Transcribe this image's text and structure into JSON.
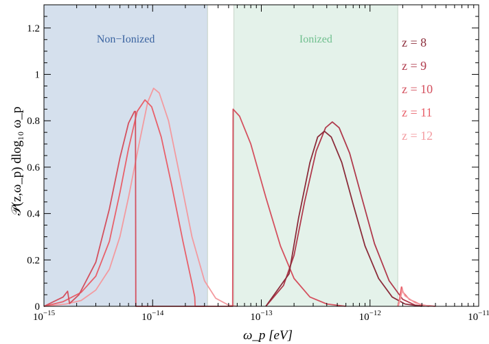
{
  "chart_data": {
    "type": "line",
    "xlabel": "ω_p   [eV]",
    "ylabel": "𝒫(z,ω_p) dlog₁₀ ω_p",
    "x_scale": "log",
    "xlim": [
      1e-15,
      1e-11
    ],
    "ylim": [
      0,
      1.3
    ],
    "x_ticks": [
      {
        "value": 1e-15,
        "base": "10",
        "exp": "−15"
      },
      {
        "value": 1e-14,
        "base": "10",
        "exp": "−14"
      },
      {
        "value": 1e-13,
        "base": "10",
        "exp": "−13"
      },
      {
        "value": 1e-12,
        "base": "10",
        "exp": "−12"
      },
      {
        "value": 1e-11,
        "base": "10",
        "exp": "−11"
      }
    ],
    "y_ticks": [
      {
        "value": 0,
        "label": "0"
      },
      {
        "value": 0.2,
        "label": "0.2"
      },
      {
        "value": 0.4,
        "label": "0.4"
      },
      {
        "value": 0.6,
        "label": "0.6"
      },
      {
        "value": 0.8,
        "label": "0.8"
      },
      {
        "value": 1.0,
        "label": "1"
      },
      {
        "value": 1.2,
        "label": "1.2"
      }
    ],
    "regions": [
      {
        "label": "Non−Ionized",
        "x_from": 1e-15,
        "x_to": 3.2e-14,
        "fill": "#d5e0ed",
        "text_color": "#3a63a0"
      },
      {
        "label": "Ionized",
        "x_from": 5.6e-14,
        "x_to": 1.8e-12,
        "fill": "#e4f2ea",
        "text_color": "#6fbf8e"
      }
    ],
    "series": [
      {
        "name": "z = 8",
        "color": "#8b2c3a",
        "points": [
          [
            1.1e-13,
            0
          ],
          [
            1.8e-13,
            0.14
          ],
          [
            2.2e-13,
            0.38
          ],
          [
            2.8e-13,
            0.62
          ],
          [
            3.3e-13,
            0.73
          ],
          [
            3.8e-13,
            0.755
          ],
          [
            4.4e-13,
            0.73
          ],
          [
            5.5e-13,
            0.62
          ],
          [
            7e-13,
            0.44
          ],
          [
            9e-13,
            0.26
          ],
          [
            1.2e-12,
            0.12
          ],
          [
            1.6e-12,
            0.04
          ],
          [
            2.1e-12,
            0.01
          ],
          [
            3e-12,
            0
          ]
        ]
      },
      {
        "name": "z = 9",
        "color": "#b03a4c",
        "points": [
          [
            1.1e-13,
            0
          ],
          [
            1.6e-13,
            0.09
          ],
          [
            2e-13,
            0.22
          ],
          [
            2.5e-13,
            0.45
          ],
          [
            3.2e-13,
            0.67
          ],
          [
            3.9e-13,
            0.77
          ],
          [
            4.5e-13,
            0.795
          ],
          [
            5.2e-13,
            0.77
          ],
          [
            6.5e-13,
            0.66
          ],
          [
            8.5e-13,
            0.46
          ],
          [
            1.1e-12,
            0.27
          ],
          [
            1.5e-12,
            0.11
          ],
          [
            2e-12,
            0.03
          ],
          [
            2.6e-12,
            0.005
          ],
          [
            3.5e-12,
            0
          ]
        ]
      },
      {
        "name": "z = 10",
        "color": "#d4505e",
        "points": [
          [
            1e-15,
            0
          ],
          [
            1.5e-15,
            0.04
          ],
          [
            1.65e-15,
            0.065
          ],
          [
            1.72e-15,
            0.012
          ],
          [
            2.1e-15,
            0.05
          ],
          [
            3e-15,
            0.19
          ],
          [
            4e-15,
            0.42
          ],
          [
            5e-15,
            0.64
          ],
          [
            6e-15,
            0.79
          ],
          [
            6.8e-15,
            0.84
          ],
          [
            6.95e-15,
            0.84
          ],
          [
            7e-15,
            0.0
          ],
          [
            7.8e-15,
            0
          ],
          [
            5.4e-14,
            0
          ],
          [
            5.45e-14,
            0.0
          ],
          [
            5.5e-14,
            0.85
          ],
          [
            6.3e-14,
            0.82
          ],
          [
            8e-14,
            0.7
          ],
          [
            1.1e-13,
            0.47
          ],
          [
            1.5e-13,
            0.26
          ],
          [
            2e-13,
            0.12
          ],
          [
            2.8e-13,
            0.04
          ],
          [
            4e-13,
            0.01
          ],
          [
            6e-13,
            0
          ]
        ]
      },
      {
        "name": "z = 11",
        "color": "#e8606a",
        "points": [
          [
            1e-15,
            0
          ],
          [
            1.5e-15,
            0.02
          ],
          [
            2.2e-15,
            0.06
          ],
          [
            3e-15,
            0.13
          ],
          [
            4e-15,
            0.28
          ],
          [
            5e-15,
            0.49
          ],
          [
            6e-15,
            0.68
          ],
          [
            7.2e-15,
            0.84
          ],
          [
            8.5e-15,
            0.89
          ],
          [
            9.8e-15,
            0.86
          ],
          [
            1.2e-14,
            0.73
          ],
          [
            1.5e-14,
            0.52
          ],
          [
            1.9e-14,
            0.28
          ],
          [
            2.3e-14,
            0.1
          ],
          [
            2.44e-14,
            0.04
          ],
          [
            2.46e-14,
            0.0
          ],
          [
            3e-14,
            0
          ]
        ]
      },
      {
        "name": "z = 12",
        "color": "#f39a9f",
        "points": [
          [
            1e-15,
            0
          ],
          [
            1.6e-15,
            0.01
          ],
          [
            2.2e-15,
            0.025
          ],
          [
            3e-15,
            0.07
          ],
          [
            4e-15,
            0.16
          ],
          [
            5e-15,
            0.3
          ],
          [
            6e-15,
            0.47
          ],
          [
            7.5e-15,
            0.7
          ],
          [
            9e-15,
            0.88
          ],
          [
            1.02e-14,
            0.94
          ],
          [
            1.15e-14,
            0.92
          ],
          [
            1.4e-14,
            0.8
          ],
          [
            1.8e-14,
            0.55
          ],
          [
            2.3e-14,
            0.3
          ],
          [
            3e-14,
            0.11
          ],
          [
            3.8e-14,
            0.035
          ],
          [
            5e-14,
            0.005
          ],
          [
            6e-14,
            0
          ]
        ]
      }
    ],
    "extra_series_segments": [
      {
        "color": "#e8606a",
        "points": [
          [
            1e-15,
            0
          ],
          [
            1e-15,
            0
          ]
        ]
      },
      {
        "color": "#e8606a",
        "points": [
          [
            1.8e-12,
            0
          ],
          [
            1.85e-12,
            0.02
          ],
          [
            1.95e-12,
            0.085
          ],
          [
            2.02e-12,
            0.06
          ],
          [
            2.3e-12,
            0.03
          ],
          [
            3e-12,
            0.005
          ],
          [
            4e-12,
            0
          ]
        ]
      },
      {
        "color": "#f39a9f",
        "points": [
          [
            1.82e-12,
            0
          ],
          [
            1.9e-12,
            0.03
          ],
          [
            1.98e-12,
            0.07
          ],
          [
            2.1e-12,
            0.045
          ],
          [
            2.6e-12,
            0.015
          ],
          [
            3.5e-12,
            0
          ]
        ]
      }
    ],
    "legend_position": "right"
  }
}
